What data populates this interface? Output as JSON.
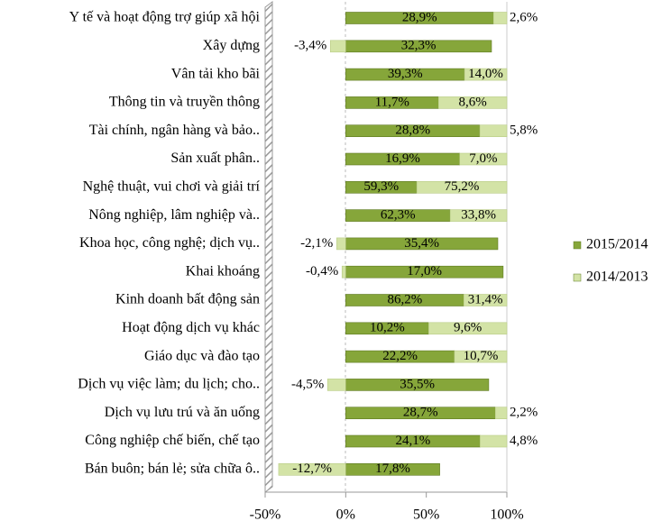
{
  "chart_data": {
    "type": "stacked_bar_100",
    "categories": [
      "Y tế và hoạt động trợ giúp xã hội",
      "Xây dựng",
      "Vân tải kho bãi",
      "Thông tin và truyền thông",
      "Tài chính, ngân hàng và bảo..",
      "Sản xuất phân..",
      "Nghệ thuật, vui chơi và giải trí",
      "Nông nghiệp, lâm nghiệp và..",
      "Khoa học, công nghệ; dịch vụ..",
      "Khai khoáng",
      "Kinh doanh bất động sản",
      "Hoạt động dịch vụ khác",
      "Giáo dục và đào tạo",
      "Dịch vụ việc làm; du lịch; cho..",
      "Dịch vụ lưu trú và ăn uống",
      "Công nghiệp chế biến, chế tạo",
      "Bán buôn; bán lẻ; sửa chữa ô.."
    ],
    "series": [
      {
        "name": "2015/2014",
        "color": "#86a63a",
        "values": [
          28.9,
          32.3,
          39.3,
          11.7,
          28.8,
          16.9,
          59.3,
          62.3,
          35.4,
          17.0,
          86.2,
          10.2,
          22.2,
          35.5,
          28.7,
          24.1,
          17.8
        ],
        "value_labels": [
          "28,9%",
          "32,3%",
          "39,3%",
          "11,7%",
          "28,8%",
          "16,9%",
          "59,3%",
          "62,3%",
          "35,4%",
          "17,0%",
          "86,2%",
          "10,2%",
          "22,2%",
          "35,5%",
          "28,7%",
          "24,1%",
          "17,8%"
        ]
      },
      {
        "name": "2014/2013",
        "color": "#d3e3a6",
        "values": [
          2.6,
          -3.4,
          14.0,
          8.6,
          5.8,
          7.0,
          75.2,
          33.8,
          -2.1,
          -0.4,
          31.4,
          9.6,
          10.7,
          -4.5,
          2.2,
          4.8,
          -12.7
        ],
        "value_labels": [
          "2,6%",
          "-3,4%",
          "14,0%",
          "8,6%",
          "5,8%",
          "7,0%",
          "75,2%",
          "33,8%",
          "-2,1%",
          "-0,4%",
          "31,4%",
          "9,6%",
          "10,7%",
          "-4,5%",
          "2,2%",
          "4,8%",
          "-12,7%"
        ]
      }
    ],
    "xlim": [
      -50,
      100
    ],
    "xticks": [
      {
        "value": -50,
        "label": "-50%"
      },
      {
        "value": 0,
        "label": "0%"
      },
      {
        "value": 50,
        "label": "50%"
      },
      {
        "value": 100,
        "label": "100%"
      }
    ],
    "legend": "right"
  }
}
